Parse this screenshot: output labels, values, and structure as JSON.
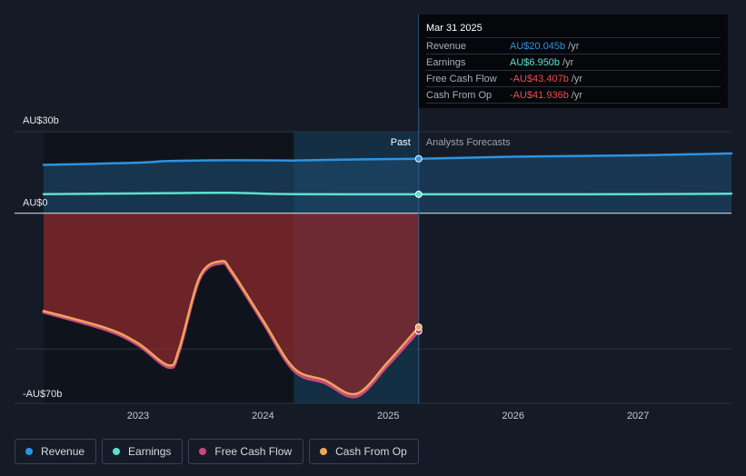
{
  "colors": {
    "revenue": "#2e93e0",
    "earnings": "#5fe0cf",
    "free_cash_flow": "#c8487c",
    "cash_from_op": "#eea55a",
    "negative_value": "#ee4a4a"
  },
  "tooltip": {
    "date": "Mar 31 2025",
    "rows": [
      {
        "label": "Revenue",
        "value": "AU$20.045b",
        "unit": "/yr",
        "color": "#2e93e0"
      },
      {
        "label": "Earnings",
        "value": "AU$6.950b",
        "unit": "/yr",
        "color": "#5fe0cf"
      },
      {
        "label": "Free Cash Flow",
        "value": "-AU$43.407b",
        "unit": "/yr",
        "color": "#ee4a4a"
      },
      {
        "label": "Cash From Op",
        "value": "-AU$41.936b",
        "unit": "/yr",
        "color": "#ee4a4a"
      }
    ]
  },
  "labels": {
    "past": "Past",
    "forecast": "Analysts Forecasts"
  },
  "legend": [
    {
      "label": "Revenue",
      "color": "#2e93e0"
    },
    {
      "label": "Earnings",
      "color": "#5fe0cf"
    },
    {
      "label": "Free Cash Flow",
      "color": "#c8487c"
    },
    {
      "label": "Cash From Op",
      "color": "#eea55a"
    }
  ],
  "chart_data": {
    "type": "line",
    "y_unit": "AU$ billions",
    "ylim": [
      -70,
      30
    ],
    "yticks": [
      {
        "value": 30,
        "label": "AU$30b"
      },
      {
        "value": 0,
        "label": "AU$0"
      },
      {
        "value": -70,
        "label": "-AU$70b"
      }
    ],
    "xlim": [
      "2022-03-31",
      "2027-10-01"
    ],
    "xticks": [
      {
        "value": "2023-01-01",
        "label": "2023"
      },
      {
        "value": "2024-01-01",
        "label": "2024"
      },
      {
        "value": "2025-01-01",
        "label": "2025"
      },
      {
        "value": "2026-01-01",
        "label": "2026"
      },
      {
        "value": "2027-01-01",
        "label": "2027"
      }
    ],
    "past_end": "2025-03-31",
    "highlight_start": "2024-03-31",
    "series": [
      {
        "name": "Revenue",
        "key": "revenue",
        "x": [
          "2022-03-31",
          "2022-12-31",
          "2023-03-31",
          "2023-09-30",
          "2024-03-31",
          "2024-09-30",
          "2025-03-31",
          "2025-12-31",
          "2026-12-31",
          "2027-10-01"
        ],
        "values": [
          17.8,
          18.6,
          19.2,
          19.5,
          19.4,
          19.8,
          20.045,
          20.8,
          21.3,
          22.0
        ]
      },
      {
        "name": "Earnings",
        "key": "earnings",
        "x": [
          "2022-03-31",
          "2023-03-31",
          "2023-09-30",
          "2024-03-31",
          "2025-03-31",
          "2026-12-31",
          "2027-10-01"
        ],
        "values": [
          7.0,
          7.4,
          7.5,
          7.0,
          6.95,
          7.0,
          7.2
        ]
      },
      {
        "name": "Free Cash Flow",
        "key": "free_cash_flow",
        "x": [
          "2022-03-31",
          "2022-09-30",
          "2022-12-31",
          "2023-03-31",
          "2023-05-01",
          "2023-07-01",
          "2023-09-01",
          "2023-10-01",
          "2023-12-31",
          "2024-03-31",
          "2024-06-30",
          "2024-09-30",
          "2024-12-31",
          "2025-03-31"
        ],
        "values": [
          -36.5,
          -43,
          -48.5,
          -56.8,
          -51,
          -24,
          -18.5,
          -22,
          -40,
          -58,
          -62.5,
          -67.5,
          -56,
          -43.407
        ]
      },
      {
        "name": "Cash From Op",
        "key": "cash_from_op",
        "x": [
          "2022-03-31",
          "2022-09-30",
          "2022-12-31",
          "2023-03-31",
          "2023-05-01",
          "2023-07-01",
          "2023-09-01",
          "2023-10-01",
          "2023-12-31",
          "2024-03-31",
          "2024-06-30",
          "2024-09-30",
          "2024-12-31",
          "2025-03-31"
        ],
        "values": [
          -36,
          -42.3,
          -47.8,
          -56,
          -50,
          -23.2,
          -17.7,
          -21.3,
          -39.2,
          -57,
          -61.5,
          -66.5,
          -54.8,
          -41.936
        ]
      }
    ]
  }
}
